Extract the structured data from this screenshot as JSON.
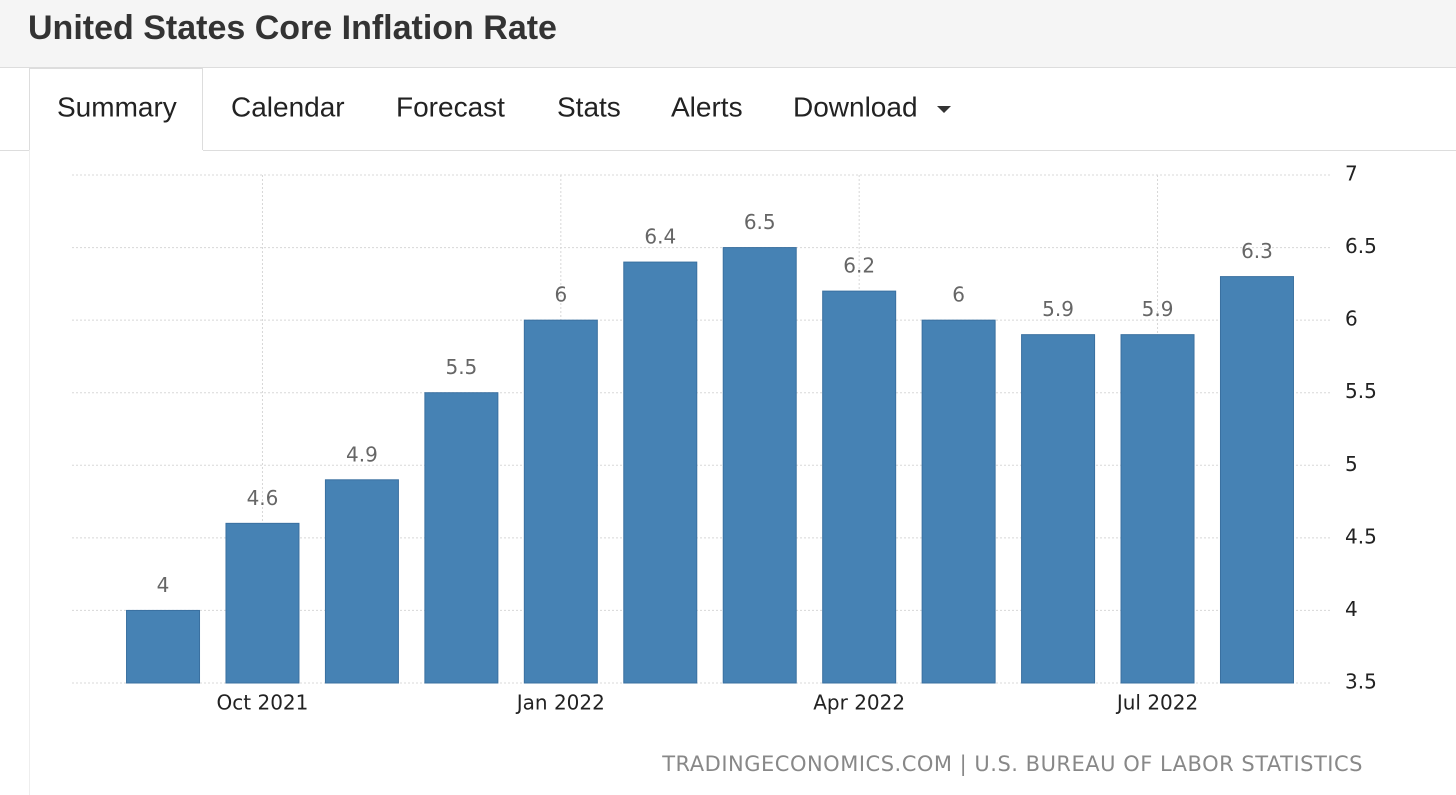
{
  "header": {
    "title": "United States Core Inflation Rate"
  },
  "tabs": [
    "Summary",
    "Calendar",
    "Forecast",
    "Stats",
    "Alerts",
    "Download"
  ],
  "chart_data": {
    "type": "bar",
    "categories": [
      null,
      "Oct 2021",
      null,
      null,
      "Jan 2022",
      null,
      null,
      "Apr 2022",
      null,
      null,
      "Jul 2022",
      null
    ],
    "values": [
      4,
      4.6,
      4.9,
      5.5,
      6,
      6.4,
      6.5,
      6.2,
      6,
      5.9,
      5.9,
      6.3
    ],
    "color": "#4682b4",
    "ylim": [
      3.5,
      7
    ],
    "yticks": [
      3.5,
      4,
      4.5,
      5,
      5.5,
      6,
      6.5,
      7
    ],
    "grid": true,
    "source": "TRADINGECONOMICS.COM | U.S. BUREAU OF LABOR STATISTICS"
  }
}
